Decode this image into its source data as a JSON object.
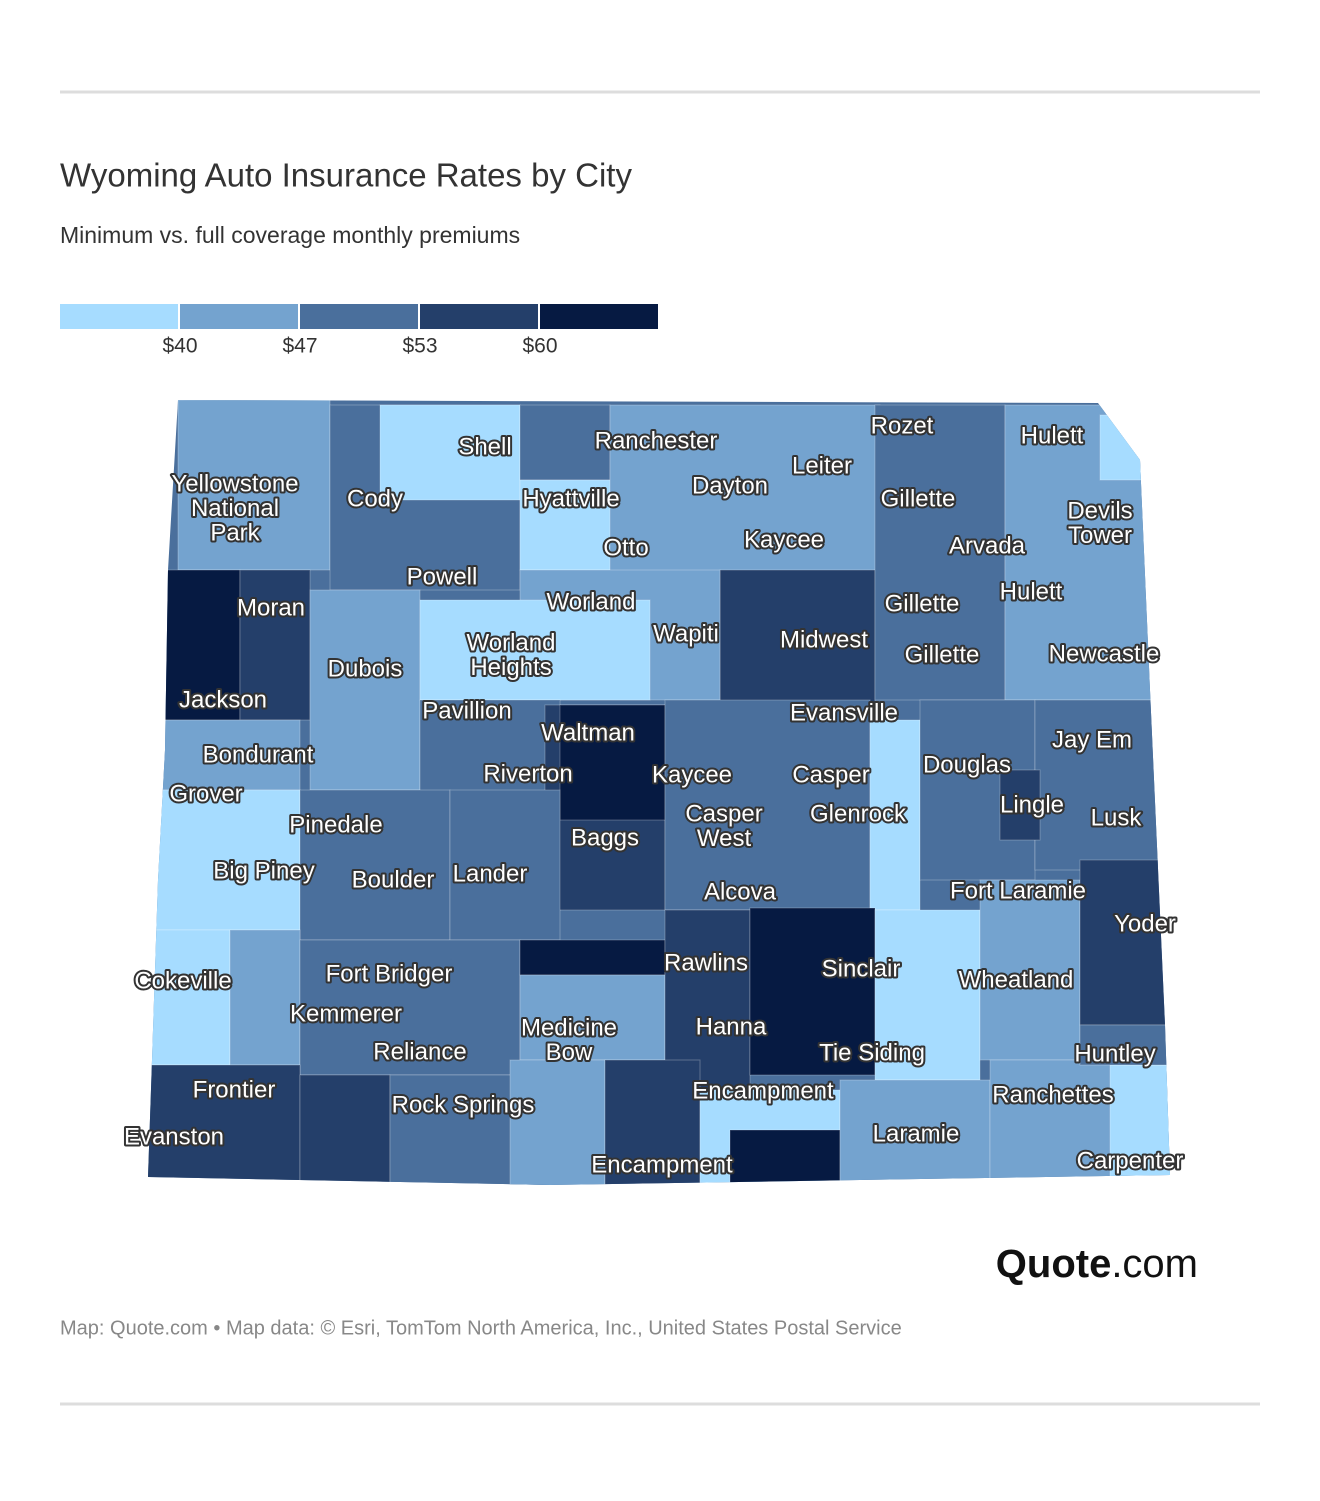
{
  "header": {
    "title": "Wyoming Auto Insurance Rates by City",
    "subtitle": "Minimum vs. full coverage monthly premiums"
  },
  "legend": {
    "colors": [
      "#a6dcff",
      "#74a3cf",
      "#4a6f9c",
      "#243f6a",
      "#061a42"
    ],
    "labels": [
      "$40",
      "$47",
      "$53",
      "$60"
    ]
  },
  "map": {
    "cities": [
      [
        "Shell"
      ],
      [
        "Ranchester"
      ],
      [
        "Rozet"
      ],
      [
        "Hulett"
      ],
      [
        "Yellowstone",
        "National",
        "Park"
      ],
      [
        "Cody"
      ],
      [
        "Hyattville"
      ],
      [
        "Dayton"
      ],
      [
        "Leiter"
      ],
      [
        "Gillette"
      ],
      [
        "Devils",
        "Tower"
      ],
      [
        "Otto"
      ],
      [
        "Kaycee"
      ],
      [
        "Arvada"
      ],
      [
        "Powell"
      ],
      [
        "Worland"
      ],
      [
        "Gillette"
      ],
      [
        "Hulett"
      ],
      [
        "Moran"
      ],
      [
        "Worland",
        "Heights"
      ],
      [
        "Wapiti"
      ],
      [
        "Midwest"
      ],
      [
        "Gillette"
      ],
      [
        "Newcastle"
      ],
      [
        "Dubois"
      ],
      [
        "Jackson"
      ],
      [
        "Pavillion"
      ],
      [
        "Evansville"
      ],
      [
        "Waltman"
      ],
      [
        "Jay Em"
      ],
      [
        "Bondurant"
      ],
      [
        "Douglas"
      ],
      [
        "Riverton"
      ],
      [
        "Kaycee"
      ],
      [
        "Casper"
      ],
      [
        "Grover"
      ],
      [
        "Lingle"
      ],
      [
        "Lusk"
      ],
      [
        "Casper",
        "West"
      ],
      [
        "Glenrock"
      ],
      [
        "Pinedale"
      ],
      [
        "Baggs"
      ],
      [
        "Big Piney"
      ],
      [
        "Boulder"
      ],
      [
        "Lander"
      ],
      [
        "Alcova"
      ],
      [
        "Fort Laramie"
      ],
      [
        "Yoder"
      ],
      [
        "Rawlins"
      ],
      [
        "Sinclair"
      ],
      [
        "Fort Bridger"
      ],
      [
        "Cokeville"
      ],
      [
        "Wheatland"
      ],
      [
        "Kemmerer"
      ],
      [
        "Medicine",
        "Bow"
      ],
      [
        "Hanna"
      ],
      [
        "Reliance"
      ],
      [
        "Tie Siding"
      ],
      [
        "Huntley"
      ],
      [
        "Frontier"
      ],
      [
        "Encampment"
      ],
      [
        "Ranchettes"
      ],
      [
        "Rock Springs"
      ],
      [
        "Evanston"
      ],
      [
        "Laramie"
      ],
      [
        "Encampment"
      ],
      [
        "Carpenter"
      ]
    ]
  },
  "logo": {
    "brand": "Quote",
    "suffix": ".com"
  },
  "footer": {
    "source": "Map: Quote.com • Map data: © Esri, TomTom North America, Inc., United States Postal Service"
  }
}
